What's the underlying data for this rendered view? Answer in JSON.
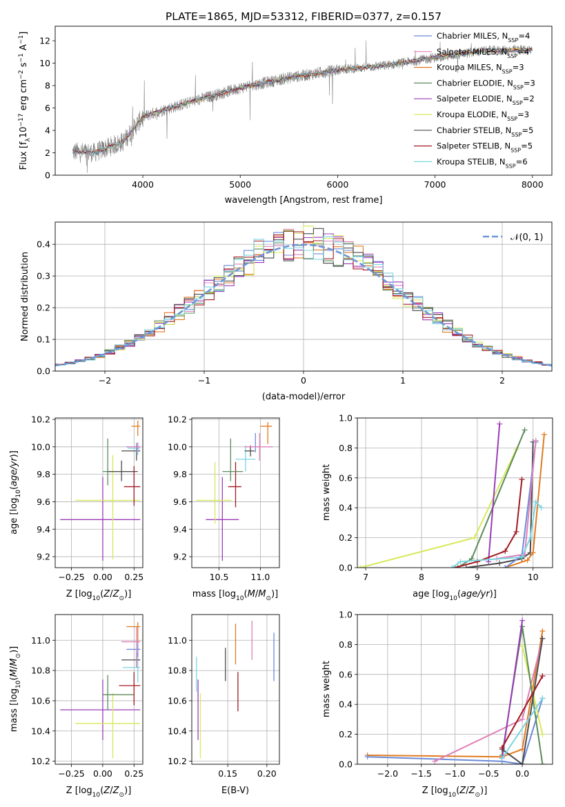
{
  "figure_title": "PLATE=1865, MJD=53312, FIBERID=0377, z=0.157",
  "colors": {
    "chabrier_miles": "#6a8ad8",
    "salpeter_miles": "#e07fb8",
    "kroupa_miles": "#e07a20",
    "chabrier_elodie": "#5a8a5a",
    "salpeter_elodie": "#9a3ab8",
    "kroupa_elodie": "#d8e85a",
    "chabrier_stelib": "#4a4a4a",
    "salpeter_stelib": "#a01820",
    "kroupa_stelib": "#7ad4e0",
    "data": "#808080",
    "normal": "#6a96d8"
  },
  "chart_data": [
    {
      "id": "spectrum",
      "type": "line",
      "xlabel": "wavelength [Angstrom, rest frame]",
      "ylabel": "Flux [f_λ10^{-17} erg cm^{-2} s^{-1} A^{-1}]",
      "xlim": [
        3100,
        8200
      ],
      "ylim": [
        0,
        13.3
      ],
      "xticks": [
        4000,
        5000,
        6000,
        7000,
        8000
      ],
      "yticks": [
        0,
        2,
        4,
        6,
        8,
        10,
        12
      ],
      "grid": false,
      "legend_position": "top-right",
      "continuum_points": [
        [
          3280,
          2.1
        ],
        [
          3500,
          2.0
        ],
        [
          3800,
          3.0
        ],
        [
          4000,
          5.2
        ],
        [
          4200,
          5.8
        ],
        [
          4600,
          6.8
        ],
        [
          5000,
          7.8
        ],
        [
          5500,
          8.7
        ],
        [
          6000,
          9.4
        ],
        [
          6500,
          9.8
        ],
        [
          7000,
          10.5
        ],
        [
          7500,
          11.1
        ],
        [
          8000,
          11.2
        ]
      ],
      "series": [
        {
          "name": "Chabrier MILES, N_SSP=4",
          "color_key": "chabrier_miles"
        },
        {
          "name": "Salpeter MILES, N_SSP=4",
          "color_key": "salpeter_miles"
        },
        {
          "name": "Kroupa MILES, N_SSP=3",
          "color_key": "kroupa_miles"
        },
        {
          "name": "Chabrier ELODIE, N_SSP=3",
          "color_key": "chabrier_elodie"
        },
        {
          "name": "Salpeter ELODIE, N_SSP=2",
          "color_key": "salpeter_elodie"
        },
        {
          "name": "Kroupa ELODIE, N_SSP=3",
          "color_key": "kroupa_elodie"
        },
        {
          "name": "Chabrier STELIB, N_SSP=5",
          "color_key": "chabrier_stelib"
        },
        {
          "name": "Salpeter STELIB, N_SSP=5",
          "color_key": "salpeter_stelib"
        },
        {
          "name": "Kroupa STELIB, N_SSP=6",
          "color_key": "kroupa_stelib"
        }
      ]
    },
    {
      "id": "residuals",
      "type": "line",
      "xlabel": "(data-model)/error",
      "ylabel": "Normed distribution",
      "xlim": [
        -2.5,
        2.5
      ],
      "ylim": [
        0,
        0.47
      ],
      "xticks": [
        -2,
        -1,
        0,
        1,
        2
      ],
      "yticks": [
        0.0,
        0.1,
        0.2,
        0.3,
        0.4
      ],
      "grid": true,
      "legend_position": "top-right",
      "reference": {
        "name": "𝒩(0, 1)",
        "color_key": "normal"
      },
      "bin_width": 0.1
    },
    {
      "id": "age_vs_Z",
      "type": "scatter",
      "xlabel": "Z [log10(Z/Z⊙)]",
      "ylabel": "age  [log10(age/yr)]",
      "xlim": [
        -0.38,
        0.32
      ],
      "ylim": [
        9.12,
        10.21
      ],
      "xticks": [
        -0.25,
        0.0,
        0.25
      ],
      "yticks": [
        9.2,
        9.4,
        9.6,
        9.8,
        10.0,
        10.2
      ],
      "grid": true,
      "points": [
        {
          "color_key": "salpeter_elodie",
          "x": 0.0,
          "xerr": [
            0.34,
            0.3
          ],
          "y": 9.47,
          "yerr": [
            0.3,
            0.31
          ]
        },
        {
          "color_key": "kroupa_elodie",
          "x": 0.08,
          "xerr": [
            0.3,
            0.22
          ],
          "y": 9.61,
          "yerr": [
            0.43,
            0.33
          ]
        },
        {
          "color_key": "chabrier_elodie",
          "x": 0.04,
          "xerr": [
            0.04,
            0.21
          ],
          "y": 9.82,
          "yerr": [
            0.1,
            0.24
          ]
        },
        {
          "color_key": "chabrier_stelib",
          "x": 0.15,
          "xerr": [
            0.11,
            0.13
          ],
          "y": 9.82,
          "yerr": [
            0.07,
            0.08
          ]
        },
        {
          "color_key": "salpeter_stelib",
          "x": 0.25,
          "xerr": [
            0.08,
            0.05
          ],
          "y": 9.71,
          "yerr": [
            0.14,
            0.15
          ]
        },
        {
          "color_key": "chabrier_stelib",
          "x": 0.27,
          "xerr": [
            0.12,
            0.03
          ],
          "y": 9.97,
          "yerr": [
            0.07,
            0.04
          ]
        },
        {
          "color_key": "kroupa_stelib",
          "x": 0.28,
          "xerr": [
            0.08,
            0.02
          ],
          "y": 9.99,
          "yerr": [
            0.05,
            0.04
          ]
        },
        {
          "color_key": "chabrier_miles",
          "x": 0.27,
          "xerr": [
            0.08,
            0.03
          ],
          "y": 10.0,
          "yerr": [
            0.04,
            0.03
          ]
        },
        {
          "color_key": "salpeter_miles",
          "x": 0.28,
          "xerr": [
            0.08,
            0.02
          ],
          "y": 10.0,
          "yerr": [
            0.03,
            0.03
          ]
        },
        {
          "color_key": "kroupa_miles",
          "x": 0.28,
          "xerr": [
            0.05,
            0.02
          ],
          "y": 10.15,
          "yerr": [
            0.07,
            0.04
          ]
        }
      ]
    },
    {
      "id": "age_vs_mass",
      "type": "scatter",
      "xlabel": "mass [log10(M/M⊙)]",
      "ylabel": "",
      "xlim": [
        10.17,
        11.23
      ],
      "ylim": [
        9.12,
        10.21
      ],
      "xticks": [
        10.5,
        11.0
      ],
      "yticks": [
        9.2,
        9.4,
        9.6,
        9.8,
        10.0,
        10.2
      ],
      "grid": true,
      "points": [
        {
          "color_key": "salpeter_elodie",
          "x": 10.54,
          "xerr": [
            0.2,
            0.2
          ],
          "y": 9.47,
          "yerr": [
            0.3,
            0.31
          ]
        },
        {
          "color_key": "kroupa_elodie",
          "x": 10.45,
          "xerr": [
            0.23,
            0.2
          ],
          "y": 9.61,
          "yerr": [
            0.17,
            0.28
          ]
        },
        {
          "color_key": "salpeter_stelib",
          "x": 10.7,
          "xerr": [
            0.09,
            0.07
          ],
          "y": 9.71,
          "yerr": [
            0.15,
            0.18
          ]
        },
        {
          "color_key": "chabrier_elodie",
          "x": 10.64,
          "xerr": [
            0.1,
            0.15
          ],
          "y": 9.82,
          "yerr": [
            0.07,
            0.24
          ]
        },
        {
          "color_key": "kroupa_stelib",
          "x": 10.82,
          "xerr": [
            0.12,
            0.12
          ],
          "y": 9.91,
          "yerr": [
            0.09,
            0.1
          ]
        },
        {
          "color_key": "chabrier_stelib",
          "x": 10.88,
          "xerr": [
            0.07,
            0.05
          ],
          "y": 9.97,
          "yerr": [
            0.04,
            0.04
          ]
        },
        {
          "color_key": "chabrier_miles",
          "x": 10.94,
          "xerr": [
            0.05,
            0.05
          ],
          "y": 10.0,
          "yerr": [
            0.04,
            0.1
          ]
        },
        {
          "color_key": "salpeter_miles",
          "x": 10.99,
          "xerr": [
            0.18,
            0.16
          ],
          "y": 10.0,
          "yerr": [
            0.1,
            0.1
          ]
        },
        {
          "color_key": "kroupa_miles",
          "x": 11.09,
          "xerr": [
            0.09,
            0.05
          ],
          "y": 10.15,
          "yerr": [
            0.13,
            0.03
          ]
        }
      ]
    },
    {
      "id": "mass_weight_vs_age",
      "type": "line",
      "xlabel": "age  [log10(age/yr)]",
      "ylabel": "mass weight",
      "xlim": [
        6.85,
        10.35
      ],
      "ylim": [
        0,
        1.0
      ],
      "xticks": [
        7,
        8,
        9,
        10
      ],
      "yticks": [
        0.0,
        0.2,
        0.4,
        0.6,
        0.8,
        1.0
      ],
      "grid": true,
      "series": [
        {
          "color_key": "kroupa_elodie",
          "x": [
            6.9,
            8.95,
            9.7
          ],
          "y": [
            0.0,
            0.2,
            0.79
          ]
        },
        {
          "color_key": "chabrier_elodie",
          "x": [
            8.65,
            8.9,
            9.85
          ],
          "y": [
            0.0,
            0.06,
            0.92
          ]
        },
        {
          "color_key": "salpeter_elodie",
          "x": [
            9.2,
            9.4
          ],
          "y": [
            0.04,
            0.96
          ]
        },
        {
          "color_key": "salpeter_stelib",
          "x": [
            8.6,
            9.0,
            9.5,
            9.7,
            9.8
          ],
          "y": [
            0.0,
            0.04,
            0.11,
            0.24,
            0.59
          ]
        },
        {
          "color_key": "chabrier_stelib",
          "x": [
            8.8,
            9.4,
            9.8,
            9.95,
            10.0
          ],
          "y": [
            0.0,
            0.03,
            0.06,
            0.1,
            0.84
          ]
        },
        {
          "color_key": "kroupa_miles",
          "x": [
            9.5,
            9.9,
            10.0,
            10.2
          ],
          "y": [
            0.0,
            0.05,
            0.1,
            0.89
          ]
        },
        {
          "color_key": "chabrier_miles",
          "x": [
            9.5,
            9.8,
            10.05
          ],
          "y": [
            0.0,
            0.08,
            0.84
          ]
        },
        {
          "color_key": "salpeter_miles",
          "x": [
            9.35,
            9.85,
            10.05
          ],
          "y": [
            0.06,
            0.09,
            0.85
          ]
        },
        {
          "color_key": "kroupa_stelib",
          "x": [
            8.55,
            8.7,
            9.8,
            9.95,
            10.05,
            10.15
          ],
          "y": [
            0.0,
            0.04,
            0.07,
            0.2,
            0.44,
            0.4
          ]
        }
      ]
    },
    {
      "id": "mass_vs_Z",
      "type": "scatter",
      "xlabel": "Z [log10(Z/Z⊙)]",
      "ylabel": "mass [log10(M/M⊙)]",
      "xlim": [
        -0.38,
        0.32
      ],
      "ylim": [
        10.18,
        11.17
      ],
      "xticks": [
        -0.25,
        0.0,
        0.25
      ],
      "yticks": [
        10.2,
        10.4,
        10.6,
        10.8,
        11.0
      ],
      "grid": true,
      "points": [
        {
          "color_key": "salpeter_elodie",
          "x": 0.0,
          "xerr": [
            0.34,
            0.3
          ],
          "y": 10.54,
          "yerr": [
            0.2,
            0.2
          ]
        },
        {
          "color_key": "kroupa_elodie",
          "x": 0.08,
          "xerr": [
            0.3,
            0.22
          ],
          "y": 10.45,
          "yerr": [
            0.23,
            0.2
          ]
        },
        {
          "color_key": "chabrier_elodie",
          "x": 0.04,
          "xerr": [
            0.04,
            0.21
          ],
          "y": 10.64,
          "yerr": [
            0.1,
            0.13
          ]
        },
        {
          "color_key": "salpeter_stelib",
          "x": 0.25,
          "xerr": [
            0.12,
            0.05
          ],
          "y": 10.7,
          "yerr": [
            0.13,
            0.09
          ]
        },
        {
          "color_key": "kroupa_stelib",
          "x": 0.28,
          "xerr": [
            0.12,
            0.02
          ],
          "y": 10.82,
          "yerr": [
            0.1,
            0.1
          ]
        },
        {
          "color_key": "chabrier_stelib",
          "x": 0.27,
          "xerr": [
            0.12,
            0.03
          ],
          "y": 10.87,
          "yerr": [
            0.05,
            0.05
          ]
        },
        {
          "color_key": "chabrier_miles",
          "x": 0.28,
          "xerr": [
            0.09,
            0.02
          ],
          "y": 10.94,
          "yerr": [
            0.05,
            0.05
          ]
        },
        {
          "color_key": "salpeter_miles",
          "x": 0.27,
          "xerr": [
            0.12,
            0.03
          ],
          "y": 10.99,
          "yerr": [
            0.17,
            0.1
          ]
        },
        {
          "color_key": "kroupa_miles",
          "x": 0.28,
          "xerr": [
            0.09,
            0.02
          ],
          "y": 11.09,
          "yerr": [
            0.1,
            0.03
          ]
        }
      ]
    },
    {
      "id": "mass_vs_ebv",
      "type": "scatter",
      "xlabel": "E(B-V)",
      "ylabel": "",
      "xlim": [
        0.104,
        0.216
      ],
      "ylim": [
        10.18,
        11.17
      ],
      "xticks": [
        0.1,
        0.15,
        0.2
      ],
      "yticks": [
        10.2,
        10.4,
        10.6,
        10.8,
        11.0
      ],
      "grid": true,
      "points": [
        {
          "color_key": "kroupa_stelib",
          "x": 0.11,
          "y": 10.78,
          "yerr": [
            0.12,
            0.11
          ]
        },
        {
          "color_key": "salpeter_elodie",
          "x": 0.112,
          "y": 10.54,
          "yerr": [
            0.2,
            0.2
          ]
        },
        {
          "color_key": "kroupa_elodie",
          "x": 0.115,
          "y": 10.45,
          "yerr": [
            0.23,
            0.2
          ]
        },
        {
          "color_key": "chabrier_stelib",
          "x": 0.147,
          "y": 10.84,
          "yerr": [
            0.11,
            0.11
          ]
        },
        {
          "color_key": "kroupa_miles",
          "x": 0.16,
          "y": 10.97,
          "yerr": [
            0.13,
            0.14
          ]
        },
        {
          "color_key": "salpeter_stelib",
          "x": 0.163,
          "y": 10.7,
          "yerr": [
            0.17,
            0.09
          ]
        },
        {
          "color_key": "salpeter_miles",
          "x": 0.181,
          "y": 11.0,
          "yerr": [
            0.13,
            0.13
          ]
        },
        {
          "color_key": "chabrier_miles",
          "x": 0.209,
          "y": 10.89,
          "yerr": [
            0.16,
            0.16
          ]
        }
      ]
    },
    {
      "id": "mass_weight_vs_Z",
      "type": "line",
      "xlabel": "Z [log10(Z/Z⊙)]",
      "ylabel": "mass weight",
      "xlim": [
        -2.45,
        0.45
      ],
      "ylim": [
        0,
        1.0
      ],
      "xticks": [
        -2.0,
        -1.5,
        -1.0,
        -0.5,
        0.0
      ],
      "yticks": [
        0.0,
        0.2,
        0.4,
        0.6,
        0.8,
        1.0
      ],
      "grid": true,
      "series": [
        {
          "color_key": "kroupa_miles",
          "x": [
            -2.3,
            -0.3,
            0.0,
            0.3
          ],
          "y": [
            0.06,
            0.05,
            0.1,
            0.89
          ]
        },
        {
          "color_key": "chabrier_miles",
          "x": [
            -2.3,
            -0.3,
            0.0,
            0.3
          ],
          "y": [
            0.05,
            0.02,
            0.0,
            0.44
          ]
        },
        {
          "color_key": "salpeter_miles",
          "x": [
            -1.3,
            0.0,
            0.3
          ],
          "y": [
            0.02,
            0.3,
            0.84
          ]
        },
        {
          "color_key": "kroupa_elodie",
          "x": [
            0.0,
            0.3
          ],
          "y": [
            0.79,
            0.2
          ]
        },
        {
          "color_key": "chabrier_elodie",
          "x": [
            -0.3,
            0.0,
            0.3
          ],
          "y": [
            0.06,
            0.92,
            0.0
          ]
        },
        {
          "color_key": "salpeter_elodie",
          "x": [
            -0.3,
            0.0
          ],
          "y": [
            0.04,
            0.96
          ]
        },
        {
          "color_key": "chabrier_stelib",
          "x": [
            -0.3,
            0.0,
            0.3
          ],
          "y": [
            0.1,
            0.0,
            0.84
          ]
        },
        {
          "color_key": "salpeter_stelib",
          "x": [
            -0.3,
            0.3
          ],
          "y": [
            0.11,
            0.59
          ]
        },
        {
          "color_key": "kroupa_stelib",
          "x": [
            -0.3,
            0.3
          ],
          "y": [
            0.04,
            0.44
          ]
        }
      ]
    }
  ]
}
